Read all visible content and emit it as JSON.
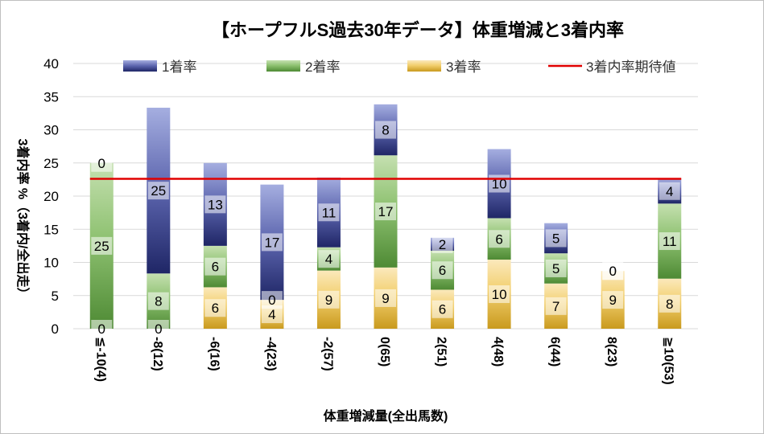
{
  "chart_data": {
    "type": "bar",
    "stacked": true,
    "title": "【ホープフルS過去30年データ】体重増減と3着内率",
    "xlabel": "体重増減量(全出馬数)",
    "ylabel": "3着内率 %（3着内/全出走）",
    "ylim": [
      0,
      40
    ],
    "yticks": [
      0,
      5,
      10,
      15,
      20,
      25,
      30,
      35,
      40
    ],
    "grid": true,
    "legend_position": "top",
    "categories": [
      "≦-10(4)",
      "-8(12)",
      "-6(16)",
      "-4(23)",
      "-2(57)",
      "0(65)",
      "2(51)",
      "4(48)",
      "6(44)",
      "8(23)",
      "≧10(53)"
    ],
    "series": [
      {
        "name": "3着率",
        "color": "#c99a1e",
        "values": [
          0,
          0,
          6.25,
          4.35,
          8.77,
          9.23,
          5.88,
          10.42,
          6.82,
          8.7,
          7.55
        ],
        "labels": [
          "0",
          "0",
          "6",
          "4",
          "9",
          "9",
          "6",
          "10",
          "7",
          "9",
          "8"
        ]
      },
      {
        "name": "2着率",
        "color": "#4e8a34",
        "values": [
          25,
          8.33,
          6.25,
          0,
          3.51,
          16.92,
          5.88,
          6.25,
          4.55,
          0,
          11.32
        ],
        "labels": [
          "25",
          "8",
          "6",
          "0",
          "4",
          "17",
          "6",
          "6",
          "5",
          "0",
          "11"
        ]
      },
      {
        "name": "1着率",
        "color": "#232a6e",
        "values": [
          0,
          25,
          12.5,
          17.39,
          10.53,
          7.69,
          1.96,
          10.42,
          4.55,
          0,
          3.77
        ],
        "labels": [
          "0",
          "25",
          "13",
          "17",
          "11",
          "8",
          "2",
          "10",
          "5",
          "0",
          "4"
        ]
      }
    ],
    "reference_line": {
      "name": "3着内率期待値",
      "value": 22.6,
      "color": "#e00000"
    }
  }
}
